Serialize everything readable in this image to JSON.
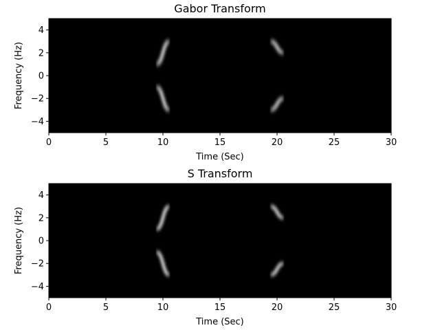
{
  "chart_data": [
    {
      "type": "heatmap",
      "title": "Gabor Transform",
      "xlabel": "Time (Sec)",
      "ylabel": "Frequency (Hz)",
      "xlim": [
        0,
        30
      ],
      "ylim": [
        -5,
        5
      ],
      "xticks": [
        0,
        5,
        10,
        15,
        20,
        25,
        30
      ],
      "yticks": [
        -4,
        -2,
        0,
        2,
        4
      ],
      "colormap": "gray",
      "background": "#000000",
      "ridge_color": "#ffffff",
      "segments": [
        {
          "t_start": 0,
          "t_end": 10,
          "frequencies": [
            1,
            -1
          ]
        },
        {
          "t_start": 10,
          "t_end": 20,
          "frequencies": [
            3,
            -3
          ]
        },
        {
          "t_start": 20,
          "t_end": 30,
          "frequencies": [
            2,
            -2
          ]
        }
      ]
    },
    {
      "type": "heatmap",
      "title": "S Transform",
      "xlabel": "Time (Sec)",
      "ylabel": "Frequency (Hz)",
      "xlim": [
        0,
        30
      ],
      "ylim": [
        -5,
        5
      ],
      "xticks": [
        0,
        5,
        10,
        15,
        20,
        25,
        30
      ],
      "yticks": [
        -4,
        -2,
        0,
        2,
        4
      ],
      "colormap": "gray",
      "background": "#000000",
      "ridge_color": "#ffffff",
      "segments": [
        {
          "t_start": 0,
          "t_end": 10,
          "frequencies": [
            1,
            -1
          ]
        },
        {
          "t_start": 10,
          "t_end": 20,
          "frequencies": [
            3,
            -3
          ]
        },
        {
          "t_start": 20,
          "t_end": 30,
          "frequencies": [
            2,
            -2
          ]
        }
      ]
    }
  ]
}
